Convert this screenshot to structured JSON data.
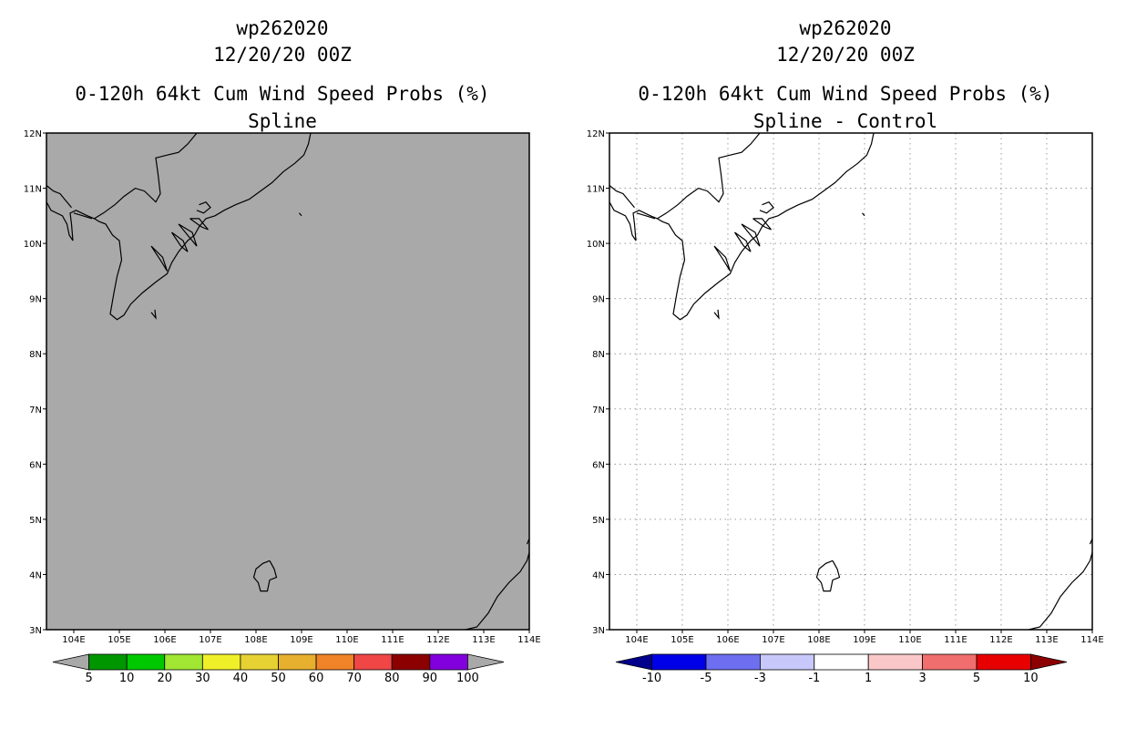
{
  "chart_data": [
    {
      "type": "heatmap",
      "title_lines": [
        "wp262020",
        "12/20/20 00Z",
        "0-120h 64kt Cum Wind Speed Probs (%)",
        "Spline"
      ],
      "xlim": [
        103.4,
        114
      ],
      "ylim": [
        3,
        12
      ],
      "x_ticks": [
        "104E",
        "105E",
        "106E",
        "107E",
        "108E",
        "109E",
        "110E",
        "111E",
        "112E",
        "113E",
        "114E"
      ],
      "y_ticks": [
        "3N",
        "4N",
        "5N",
        "6N",
        "7N",
        "8N",
        "9N",
        "10N",
        "11N",
        "12N"
      ],
      "background_color": "#a9a9a9",
      "grid": false,
      "colorbar": {
        "labels": [
          "5",
          "10",
          "20",
          "30",
          "40",
          "50",
          "60",
          "70",
          "80",
          "90",
          "100"
        ],
        "colors": [
          "#a9a9a9",
          "#009600",
          "#00c800",
          "#a0e632",
          "#f0f028",
          "#e6d232",
          "#e6af2d",
          "#f08228",
          "#f04646",
          "#8c0000",
          "#8200dc",
          "#a9a9a9"
        ]
      }
    },
    {
      "type": "heatmap",
      "title_lines": [
        "wp262020",
        "12/20/20 00Z",
        "0-120h 64kt Cum Wind Speed Probs (%)",
        "Spline - Control"
      ],
      "xlim": [
        103.4,
        114
      ],
      "ylim": [
        3,
        12
      ],
      "x_ticks": [
        "104E",
        "105E",
        "106E",
        "107E",
        "108E",
        "109E",
        "110E",
        "111E",
        "112E",
        "113E",
        "114E"
      ],
      "y_ticks": [
        "3N",
        "4N",
        "5N",
        "6N",
        "7N",
        "8N",
        "9N",
        "10N",
        "11N",
        "12N"
      ],
      "background_color": "#ffffff",
      "grid": true,
      "colorbar": {
        "labels": [
          "-10",
          "-5",
          "-3",
          "-1",
          "1",
          "3",
          "5",
          "10"
        ],
        "colors": [
          "#00008c",
          "#0000e6",
          "#6e6ef0",
          "#c8c8fa",
          "#ffffff",
          "#fac8c8",
          "#f06e6e",
          "#e60000",
          "#8c0000"
        ]
      }
    }
  ]
}
